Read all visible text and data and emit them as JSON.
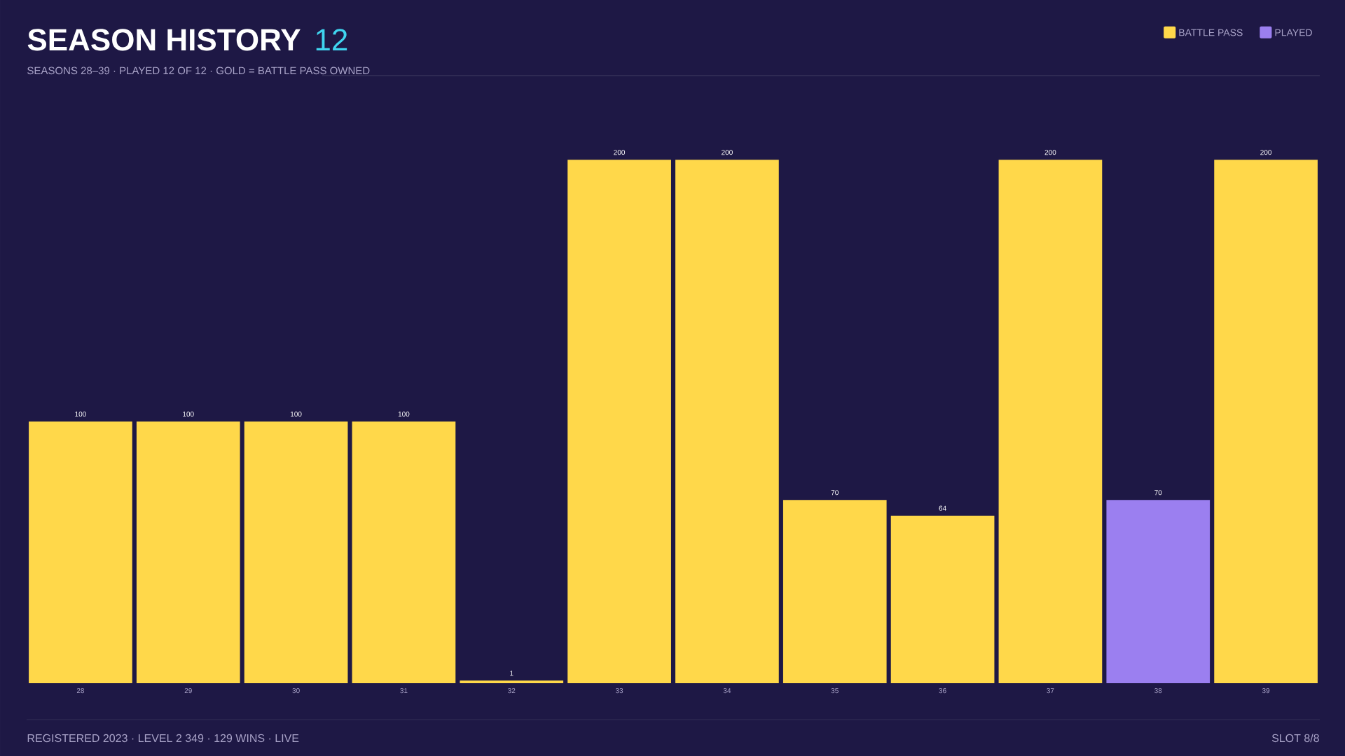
{
  "chart_data": {
    "type": "bar",
    "title": "SEASON HISTORY",
    "subtitle": "SEASONS 28–39 · PLAYED 12 OF 12 · GOLD = BATTLE PASS OWNED",
    "categories": [
      "28",
      "29",
      "30",
      "31",
      "32",
      "33",
      "34",
      "35",
      "36",
      "37",
      "38",
      "39"
    ],
    "series": [
      {
        "name": "BATTLE PASS",
        "color": "#ffd84a",
        "values": [
          100,
          100,
          100,
          100,
          1,
          200,
          200,
          70,
          64,
          200,
          null,
          200
        ]
      },
      {
        "name": "PLAYED",
        "color": "#9b7ff0",
        "values": [
          null,
          null,
          null,
          null,
          null,
          null,
          null,
          null,
          null,
          null,
          70,
          null
        ]
      }
    ],
    "data_labels": true,
    "legend": "top right",
    "annotations": [
      "12",
      "REGISTERED 2023 · LEVEL 2 349 · 129 WINS · LIVE",
      "SLOT 8/8"
    ]
  }
}
